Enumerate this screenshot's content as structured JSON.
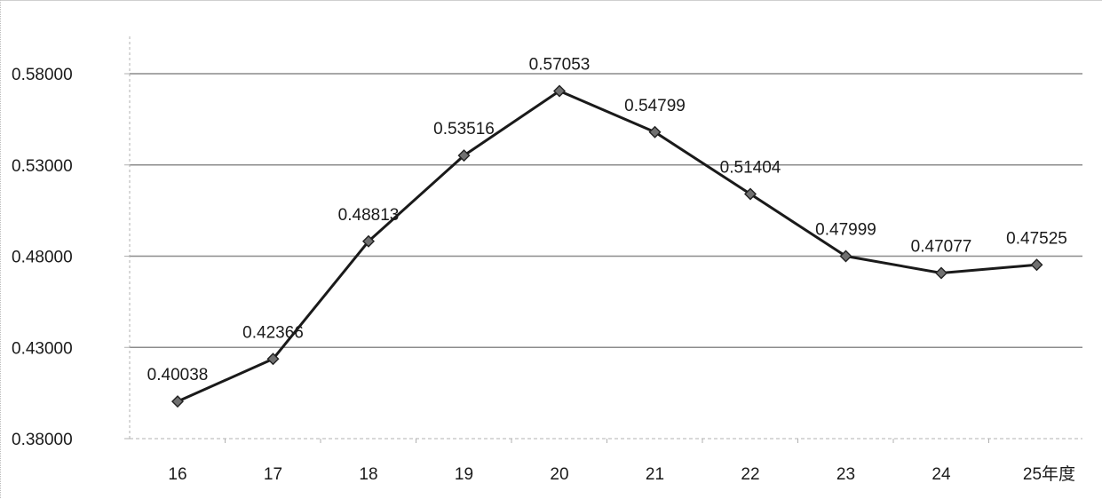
{
  "chart_data": {
    "type": "line",
    "categories": [
      "16",
      "17",
      "18",
      "19",
      "20",
      "21",
      "22",
      "23",
      "24",
      "25年度"
    ],
    "series": [
      {
        "values": [
          0.40038,
          0.42366,
          0.48813,
          0.53516,
          0.57053,
          0.54799,
          0.51404,
          0.47999,
          0.47077,
          0.47525
        ],
        "labels": [
          "0.40038",
          "0.42366",
          "0.48813",
          "0.53516",
          "0.57053",
          "0.54799",
          "0.51404",
          "0.47999",
          "0.47077",
          "0.47525"
        ],
        "color": "#1a1a1a",
        "marker": "diamond"
      }
    ],
    "y_ticks": [
      0.38,
      0.43,
      0.48,
      0.53,
      0.58
    ],
    "y_tick_labels": [
      "0.38000",
      "0.43000",
      "0.48000",
      "0.53000",
      "0.58000"
    ],
    "ylim": [
      0.38,
      0.58
    ],
    "title": "",
    "xlabel": "",
    "ylabel": "",
    "grid": true,
    "legend": "none",
    "colors": {
      "line": "#1a1a1a",
      "marker": "#707070",
      "grid": "#8c8c8c",
      "axis": "#b0b0b0"
    }
  }
}
